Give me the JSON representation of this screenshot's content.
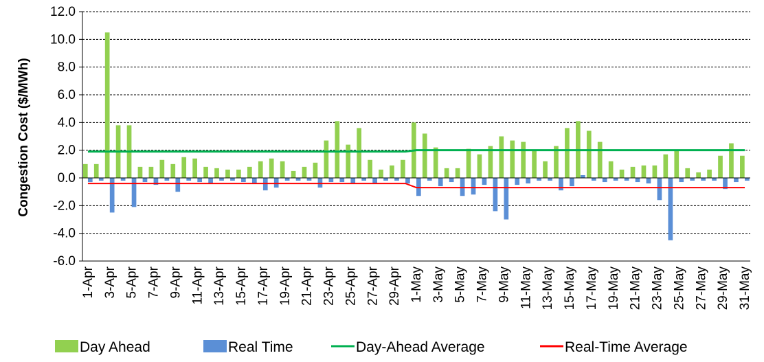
{
  "chart_data": {
    "type": "bar",
    "ylabel": "Congestion Cost ($/MWh)",
    "ylim": [
      -6,
      12
    ],
    "yticks": [
      "-6.0",
      "-4.0",
      "-2.0",
      "0.0",
      "2.0",
      "4.0",
      "6.0",
      "8.0",
      "10.0",
      "12.0"
    ],
    "ytick_values": [
      -6,
      -4,
      -2,
      0,
      2,
      4,
      6,
      8,
      10,
      12
    ],
    "grid": "horizontal dashed",
    "legend_position": "bottom",
    "categories": [
      "1-Apr",
      "2-Apr",
      "3-Apr",
      "4-Apr",
      "5-Apr",
      "6-Apr",
      "7-Apr",
      "8-Apr",
      "9-Apr",
      "10-Apr",
      "11-Apr",
      "12-Apr",
      "13-Apr",
      "14-Apr",
      "15-Apr",
      "16-Apr",
      "17-Apr",
      "18-Apr",
      "19-Apr",
      "20-Apr",
      "21-Apr",
      "22-Apr",
      "23-Apr",
      "24-Apr",
      "25-Apr",
      "26-Apr",
      "27-Apr",
      "28-Apr",
      "29-Apr",
      "30-Apr",
      "1-May",
      "2-May",
      "3-May",
      "4-May",
      "5-May",
      "6-May",
      "7-May",
      "8-May",
      "9-May",
      "10-May",
      "11-May",
      "12-May",
      "13-May",
      "14-May",
      "15-May",
      "16-May",
      "17-May",
      "18-May",
      "19-May",
      "20-May",
      "21-May",
      "22-May",
      "23-May",
      "24-May",
      "25-May",
      "26-May",
      "27-May",
      "28-May",
      "29-May",
      "30-May",
      "31-May"
    ],
    "tick_labels": [
      "1-Apr",
      "3-Apr",
      "5-Apr",
      "7-Apr",
      "9-Apr",
      "11-Apr",
      "13-Apr",
      "15-Apr",
      "17-Apr",
      "19-Apr",
      "21-Apr",
      "23-Apr",
      "25-Apr",
      "27-Apr",
      "29-Apr",
      "1-May",
      "3-May",
      "5-May",
      "7-May",
      "9-May",
      "11-May",
      "13-May",
      "15-May",
      "17-May",
      "19-May",
      "21-May",
      "23-May",
      "25-May",
      "27-May",
      "29-May",
      "31-May"
    ],
    "series": [
      {
        "name": "Day Ahead",
        "kind": "bar",
        "color": "#92d050",
        "values": [
          1.0,
          1.0,
          10.5,
          3.8,
          3.8,
          0.8,
          0.8,
          1.3,
          1.0,
          1.5,
          1.4,
          0.8,
          0.7,
          0.6,
          0.6,
          0.8,
          1.2,
          1.4,
          1.2,
          0.5,
          0.8,
          1.1,
          2.7,
          4.1,
          2.4,
          3.6,
          1.3,
          0.6,
          0.9,
          1.3,
          4.0,
          3.2,
          2.2,
          0.7,
          0.7,
          2.1,
          1.7,
          2.3,
          3.0,
          2.7,
          2.6,
          2.0,
          1.2,
          2.3,
          3.6,
          4.1,
          3.4,
          2.6,
          1.2,
          0.6,
          0.8,
          0.9,
          0.9,
          1.7,
          2.0,
          0.7,
          0.4,
          0.6,
          1.6,
          2.5,
          1.6
        ]
      },
      {
        "name": "Real Time",
        "kind": "bar",
        "color": "#5b8fd6",
        "values": [
          -0.3,
          -0.2,
          -2.5,
          -0.2,
          -2.1,
          -0.3,
          -0.5,
          -0.2,
          -1.0,
          -0.2,
          -0.3,
          -0.4,
          -0.2,
          -0.2,
          -0.3,
          -0.4,
          -0.9,
          -0.7,
          -0.2,
          -0.2,
          -0.2,
          -0.7,
          -0.3,
          -0.3,
          -0.4,
          -0.2,
          -0.4,
          -0.2,
          -0.2,
          -0.4,
          -1.3,
          -0.2,
          -0.6,
          -0.3,
          -1.3,
          -1.2,
          -0.5,
          -2.4,
          -3.0,
          -0.5,
          -0.4,
          -0.2,
          -0.2,
          -0.9,
          -0.6,
          0.2,
          -0.2,
          -0.3,
          -0.2,
          -0.2,
          -0.3,
          -0.4,
          -1.6,
          -4.5,
          -0.3,
          -0.2,
          -0.2,
          -0.2,
          -0.8,
          -0.3,
          -0.2
        ]
      },
      {
        "name": "Day-Ahead Average",
        "kind": "line",
        "color": "#00b050",
        "segments": [
          {
            "from": "1-Apr",
            "to": "30-Apr",
            "value": 1.9
          },
          {
            "from": "1-May",
            "to": "31-May",
            "value": 2.0
          }
        ]
      },
      {
        "name": "Real-Time Average",
        "kind": "line",
        "color": "#ff0000",
        "segments": [
          {
            "from": "1-Apr",
            "to": "30-Apr",
            "value": -0.4
          },
          {
            "from": "1-May",
            "to": "31-May",
            "value": -0.7
          }
        ]
      }
    ]
  }
}
